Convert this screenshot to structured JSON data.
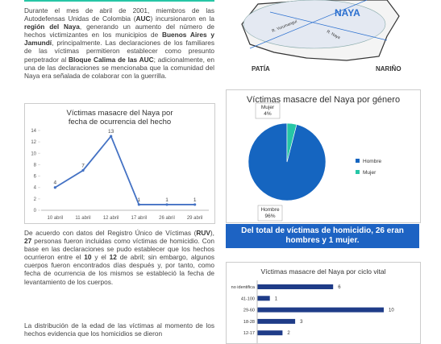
{
  "paragraphs": [
    [
      {
        "text": "Durante el mes de abril de 2001, miembros de las Autodefensas Unidas de Colombia (",
        "bold": false
      },
      {
        "text": "AUC",
        "bold": true
      },
      {
        "text": ") incursionaron en la ",
        "bold": false
      },
      {
        "text": "región del Naya",
        "bold": true
      },
      {
        "text": ", generando un aumento del número de hechos victimizantes en los municipios de ",
        "bold": false
      },
      {
        "text": "Buenos Aires y Jamundí",
        "bold": true
      },
      {
        "text": ", principalmente. Las declaraciones de los familiares de las víctimas permitieron establecer como presunto perpetrador al ",
        "bold": false
      },
      {
        "text": "Bloque Calima de las AUC",
        "bold": true
      },
      {
        "text": "; adicionalmente, en una de las declaraciones se mencionaba que la comunidad del Naya era señalada de colaborar con la guerrilla.",
        "bold": false
      }
    ],
    [
      {
        "text": "De acuerdo con datos del Registro Único de Víctimas (",
        "bold": false
      },
      {
        "text": "RUV",
        "bold": true
      },
      {
        "text": "), ",
        "bold": false
      },
      {
        "text": "27",
        "bold": true
      },
      {
        "text": " personas fueron incluidas como víctimas de homicidio. Con base en las declaraciones se pudo establecer que los hechos ocurrieron entre el ",
        "bold": false
      },
      {
        "text": "10",
        "bold": true
      },
      {
        "text": " y el ",
        "bold": false
      },
      {
        "text": "12",
        "bold": true
      },
      {
        "text": " de abril; sin embargo, algunos cuerpos fueron encontrados días después y, por tanto, como fecha de ocurrencia de los mismos se estableció la fecha de levantamiento de los cuerpos.",
        "bold": false
      }
    ],
    [
      {
        "text": "La distribución de la edad de las víctimas al momento de los hechos evidencia que los homicidios se dieron",
        "bold": false
      }
    ]
  ],
  "map": {
    "labels": [
      "NAYA",
      "PATÍA",
      "NARIÑO",
      "R. Yurumanguí",
      "R. Naya"
    ]
  },
  "banner": [
    {
      "text": "Del total de víctimas de homicidio, ",
      "bold": false
    },
    {
      "text": "26",
      "bold": true
    },
    {
      "text": " eran hombres y ",
      "bold": false
    },
    {
      "text": "1",
      "bold": true
    },
    {
      "text": " mujer.",
      "bold": false
    }
  ],
  "chart_data": [
    {
      "type": "line",
      "title": "Víctimas masacre del Naya por fecha de ocurrencia del hecho",
      "categories": [
        "10 abril",
        "11 abril",
        "12 abril",
        "17 abril",
        "26 abril",
        "29 abril"
      ],
      "values": [
        4,
        7,
        13,
        1,
        1,
        1
      ],
      "color": "#4472c4",
      "ylim": [
        0,
        14
      ],
      "yticks": [
        0,
        2,
        4,
        6,
        8,
        10,
        12,
        14
      ],
      "grid": false
    },
    {
      "type": "pie",
      "title": "Víctimas masacre del Naya por género",
      "categories": [
        "Hombre",
        "Mujer"
      ],
      "values": [
        96,
        4
      ],
      "value_labels": [
        "96%",
        "4%"
      ],
      "colors": [
        "#1565c0",
        "#26c6a6"
      ],
      "legend": "right"
    },
    {
      "type": "hbar",
      "title": "Víctimas masacre del Naya por ciclo vital",
      "categories": [
        "no identifica",
        "41-100",
        "29-60",
        "18-28",
        "12-17"
      ],
      "values": [
        6,
        1,
        10,
        3,
        2
      ],
      "color": "#1f3c88"
    }
  ]
}
